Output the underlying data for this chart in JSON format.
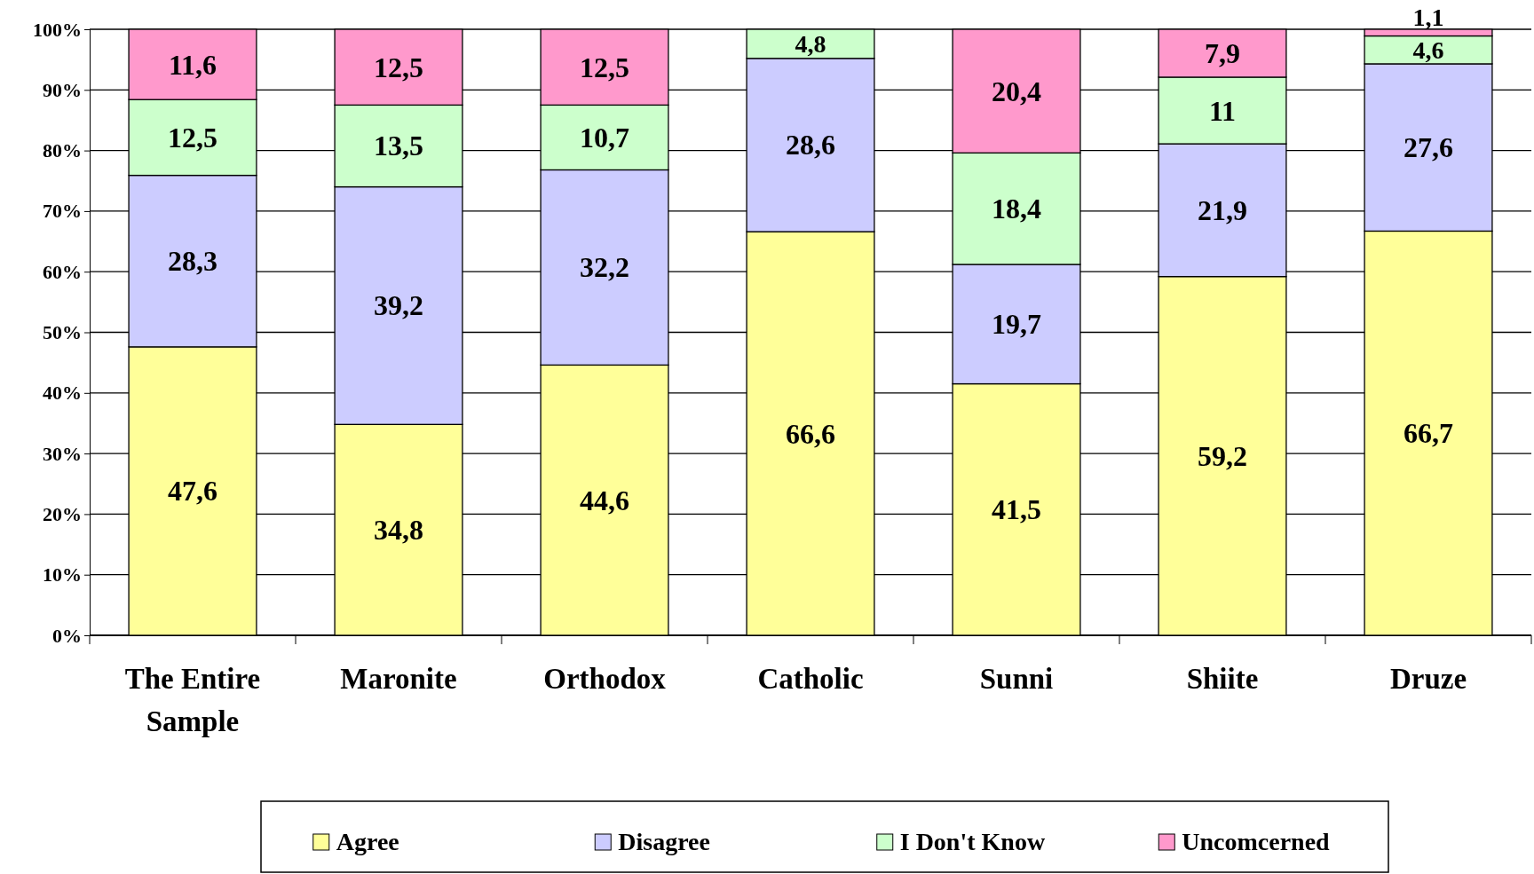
{
  "chart_data": {
    "type": "bar",
    "stacked": true,
    "categories": [
      "The Entire Sample",
      "Maronite",
      "Orthodox",
      "Catholic",
      "Sunni",
      "Shiite",
      "Druze"
    ],
    "series": [
      {
        "name": "Agree",
        "color": "#ffff99",
        "values": [
          47.6,
          34.8,
          44.6,
          66.6,
          41.5,
          59.2,
          66.7
        ],
        "value_labels": [
          "47,6",
          "34,8",
          "44,6",
          "66,6",
          "41,5",
          "59,2",
          "66,7"
        ]
      },
      {
        "name": "Disagree",
        "color": "#ccccff",
        "values": [
          28.3,
          39.2,
          32.2,
          28.6,
          19.7,
          21.9,
          27.6
        ],
        "value_labels": [
          "28,3",
          "39,2",
          "32,2",
          "28,6",
          "19,7",
          "21,9",
          "27,6"
        ]
      },
      {
        "name": "I Don't Know",
        "color": "#ccffcc",
        "values": [
          12.5,
          13.5,
          10.7,
          4.8,
          18.4,
          11,
          4.6
        ],
        "value_labels": [
          "12,5",
          "13,5",
          "10,7",
          "4,8",
          "18,4",
          "11",
          "4,6"
        ]
      },
      {
        "name": "Uncomcerned",
        "color": "#ff99cc",
        "values": [
          11.6,
          12.5,
          12.5,
          null,
          20.4,
          7.9,
          1.1
        ],
        "value_labels": [
          "11,6",
          "12,5",
          "12,5",
          null,
          "20,4",
          "7,9",
          "1,1"
        ]
      }
    ],
    "ylim": [
      0,
      100
    ],
    "yticks": [
      {
        "value": 0,
        "label": "0%"
      },
      {
        "value": 10,
        "label": "10%"
      },
      {
        "value": 20,
        "label": "20%"
      },
      {
        "value": 30,
        "label": "30%"
      },
      {
        "value": 40,
        "label": "40%"
      },
      {
        "value": 50,
        "label": "50%"
      },
      {
        "value": 60,
        "label": "60%"
      },
      {
        "value": 70,
        "label": "70%"
      },
      {
        "value": 80,
        "label": "80%"
      },
      {
        "value": 90,
        "label": "90%"
      },
      {
        "value": 100,
        "label": "100%"
      }
    ],
    "grid": "y",
    "legend": "bottom"
  }
}
